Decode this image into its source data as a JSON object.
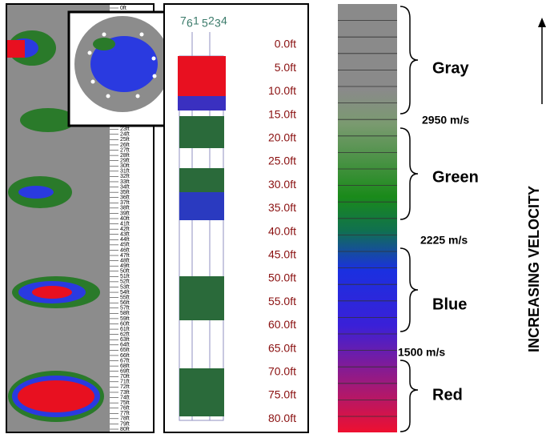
{
  "left_panel": {
    "depth_labels": [
      "0ft",
      "23ft",
      "24ft",
      "25ft",
      "26ft",
      "27ft",
      "28ft",
      "29ft",
      "30ft",
      "31ft",
      "32ft",
      "33ft",
      "34ft",
      "35ft",
      "36ft",
      "37ft",
      "38ft",
      "39ft",
      "40ft",
      "41ft",
      "42ft",
      "43ft",
      "44ft",
      "45ft",
      "46ft",
      "47ft",
      "48ft",
      "49ft",
      "50ft",
      "51ft",
      "52ft",
      "53ft",
      "54ft",
      "55ft",
      "56ft",
      "57ft",
      "58ft",
      "59ft",
      "60ft",
      "61ft",
      "62ft",
      "63ft",
      "64ft",
      "65ft",
      "66ft",
      "67ft",
      "68ft",
      "69ft",
      "70ft",
      "71ft",
      "72ft",
      "73ft",
      "74ft",
      "75ft",
      "76ft",
      "77ft",
      "78ft",
      "79ft",
      "80ft"
    ]
  },
  "middle_panel": {
    "tube_labels": [
      "7",
      "6",
      "1",
      "5",
      "2",
      "3",
      "4"
    ],
    "depth_labels": [
      "0.0ft",
      "5.0ft",
      "10.0ft",
      "15.0ft",
      "20.0ft",
      "25.0ft",
      "30.0ft",
      "35.0ft",
      "40.0ft",
      "45.0ft",
      "50.0ft",
      "55.0ft",
      "60.0ft",
      "65.0ft",
      "70.0ft",
      "75.0ft",
      "80.0ft"
    ]
  },
  "legend": {
    "colors": [
      "Gray",
      "Green",
      "Blue",
      "Red"
    ],
    "thresholds": [
      "2950 m/s",
      "2225 m/s",
      "1500 m/s"
    ],
    "axis_label": "INCREASING VELOCITY"
  }
}
